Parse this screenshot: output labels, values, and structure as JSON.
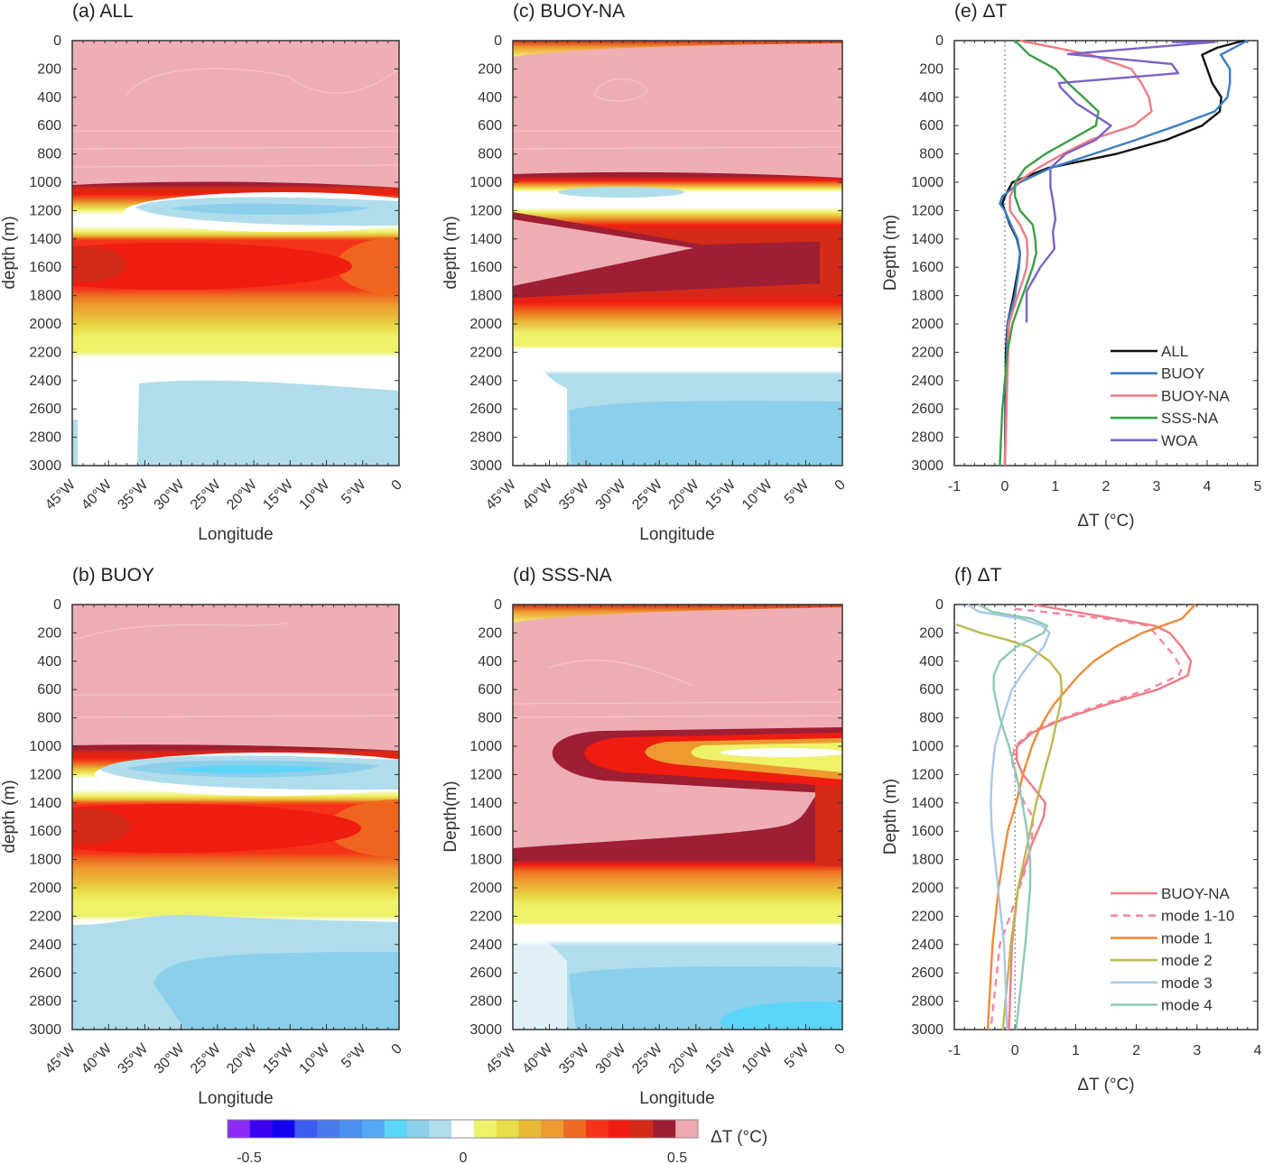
{
  "depth_ticks": [
    0,
    200,
    400,
    600,
    800,
    1000,
    1200,
    1400,
    1600,
    1800,
    2000,
    2200,
    2400,
    2600,
    2800,
    3000
  ],
  "lon_ticks": [
    "45°W",
    "40°W",
    "35°W",
    "30°W",
    "25°W",
    "20°W",
    "15°W",
    "10°W",
    "5°W",
    "0"
  ],
  "chart_data": [
    {
      "type": "heatmap",
      "title": "(a) ALL",
      "xlabel": "Longitude",
      "ylabel": "depth (m)",
      "xlim": [
        "45°W",
        "0"
      ],
      "ylim": [
        3000,
        0
      ]
    },
    {
      "type": "heatmap",
      "title": "(b) BUOY",
      "xlabel": "Longitude",
      "ylabel": "depth (m)",
      "xlim": [
        "45°W",
        "0"
      ],
      "ylim": [
        3000,
        0
      ]
    },
    {
      "type": "heatmap",
      "title": "(c) BUOY-NA",
      "xlabel": "Longitude",
      "ylabel": "depth (m)",
      "xlim": [
        "45°W",
        "0"
      ],
      "ylim": [
        3000,
        0
      ]
    },
    {
      "type": "heatmap",
      "title": "(d) SSS-NA",
      "xlabel": "Longitude",
      "ylabel": "Depth(m)",
      "xlim": [
        "45°W",
        "0"
      ],
      "ylim": [
        3000,
        0
      ]
    },
    {
      "type": "line",
      "title": "(e) ΔT",
      "xlabel": "ΔT (°C)",
      "ylabel": "Depth (m)",
      "xlim": [
        -1,
        5
      ],
      "ylim": [
        3000,
        0
      ],
      "xticks": [
        "-1",
        "0",
        "1",
        "2",
        "3",
        "4",
        "5"
      ],
      "legend": "bottom-right",
      "series": [
        {
          "name": "ALL",
          "color": "#111111",
          "points": [
            [
              4.73,
              0
            ],
            [
              4.2,
              50
            ],
            [
              3.9,
              100
            ],
            [
              3.95,
              150
            ],
            [
              4.0,
              200
            ],
            [
              4.1,
              300
            ],
            [
              4.28,
              400
            ],
            [
              4.25,
              500
            ],
            [
              3.9,
              600
            ],
            [
              3.2,
              700
            ],
            [
              2.2,
              800
            ],
            [
              0.85,
              900
            ],
            [
              0.15,
              1000
            ],
            [
              0,
              1100
            ],
            [
              -0.05,
              1150
            ],
            [
              0,
              1200
            ],
            [
              0.1,
              1300
            ],
            [
              0.24,
              1400
            ],
            [
              0.3,
              1500
            ],
            [
              0.27,
              1600
            ],
            [
              0.22,
              1700
            ],
            [
              0.17,
              1800
            ],
            [
              0.05,
              2000
            ],
            [
              0.02,
              2200
            ],
            [
              0,
              3000
            ]
          ]
        },
        {
          "name": "BUOY",
          "color": "#3C7DC4",
          "points": [
            [
              4.8,
              0
            ],
            [
              4.27,
              100
            ],
            [
              4.45,
              200
            ],
            [
              4.45,
              300
            ],
            [
              4.4,
              400
            ],
            [
              4.15,
              500
            ],
            [
              3.4,
              600
            ],
            [
              2.6,
              700
            ],
            [
              1.75,
              800
            ],
            [
              0.9,
              900
            ],
            [
              0.3,
              1000
            ],
            [
              -0.05,
              1100
            ],
            [
              -0.1,
              1150
            ],
            [
              0,
              1200
            ],
            [
              0.12,
              1300
            ],
            [
              0.25,
              1400
            ],
            [
              0.3,
              1500
            ],
            [
              0.28,
              1600
            ],
            [
              0.2,
              1800
            ],
            [
              0.05,
              2000
            ],
            [
              0,
              3000
            ]
          ]
        },
        {
          "name": "BUOY-NA",
          "color": "#F07C84",
          "points": [
            [
              0.3,
              0
            ],
            [
              1.7,
              100
            ],
            [
              2.5,
              200
            ],
            [
              2.7,
              300
            ],
            [
              2.85,
              400
            ],
            [
              2.9,
              500
            ],
            [
              2.55,
              600
            ],
            [
              1.7,
              700
            ],
            [
              1.15,
              800
            ],
            [
              0.65,
              900
            ],
            [
              0.25,
              1000
            ],
            [
              0.1,
              1100
            ],
            [
              0.1,
              1200
            ],
            [
              0.3,
              1300
            ],
            [
              0.43,
              1400
            ],
            [
              0.45,
              1500
            ],
            [
              0.43,
              1600
            ],
            [
              0.35,
              1700
            ],
            [
              0.25,
              1800
            ],
            [
              0.08,
              2000
            ],
            [
              0,
              3000
            ]
          ]
        },
        {
          "name": "SSS-NA",
          "color": "#3E9E48",
          "points": [
            [
              0.2,
              0
            ],
            [
              0.48,
              100
            ],
            [
              1.0,
              200
            ],
            [
              1.25,
              300
            ],
            [
              1.55,
              400
            ],
            [
              1.85,
              500
            ],
            [
              1.8,
              600
            ],
            [
              1.3,
              700
            ],
            [
              0.8,
              800
            ],
            [
              0.4,
              900
            ],
            [
              0.2,
              1000
            ],
            [
              0.2,
              1100
            ],
            [
              0.3,
              1200
            ],
            [
              0.55,
              1300
            ],
            [
              0.6,
              1400
            ],
            [
              0.62,
              1500
            ],
            [
              0.55,
              1600
            ],
            [
              0.35,
              1800
            ],
            [
              0.15,
              2000
            ],
            [
              0.05,
              2200
            ],
            [
              -0.05,
              2600
            ],
            [
              -0.1,
              3000
            ]
          ]
        },
        {
          "name": "WOA",
          "color": "#7B62C8",
          "points": [
            [
              3.3,
              10
            ],
            [
              4.15,
              10
            ],
            [
              1.25,
              95
            ],
            [
              3.3,
              165
            ],
            [
              3.43,
              230
            ],
            [
              1.07,
              300
            ],
            [
              1.1,
              330
            ],
            [
              1.4,
              440
            ],
            [
              2.1,
              600
            ],
            [
              1.8,
              700
            ],
            [
              1.2,
              800
            ],
            [
              0.9,
              900
            ],
            [
              0.9,
              1030
            ],
            [
              0.95,
              1130
            ],
            [
              1.0,
              1260
            ],
            [
              0.95,
              1350
            ],
            [
              0.98,
              1470
            ],
            [
              0.7,
              1600
            ],
            [
              0.43,
              1770
            ],
            [
              0.43,
              1990
            ]
          ]
        }
      ]
    },
    {
      "type": "line",
      "title": "(f) ΔT",
      "xlabel": "ΔT (°C)",
      "ylabel": "Depth (m)",
      "xlim": [
        -1,
        4
      ],
      "ylim": [
        3000,
        0
      ],
      "xticks": [
        "-1",
        "0",
        "1",
        "2",
        "3",
        "4"
      ],
      "legend": "bottom-right",
      "series": [
        {
          "name": "BUOY-NA",
          "color": "#EF7B84",
          "dashed": false,
          "points": [
            [
              0.3,
              0
            ],
            [
              1.65,
              100
            ],
            [
              2.3,
              150
            ],
            [
              2.55,
              200
            ],
            [
              2.75,
              300
            ],
            [
              2.9,
              400
            ],
            [
              2.85,
              500
            ],
            [
              2.35,
              600
            ],
            [
              1.55,
              700
            ],
            [
              0.85,
              800
            ],
            [
              0.3,
              900
            ],
            [
              0.03,
              1000
            ],
            [
              0.03,
              1100
            ],
            [
              0.13,
              1200
            ],
            [
              0.32,
              1300
            ],
            [
              0.5,
              1400
            ],
            [
              0.47,
              1500
            ],
            [
              0.37,
              1600
            ],
            [
              0.27,
              1700
            ],
            [
              0.2,
              1800
            ],
            [
              0.05,
              2000
            ],
            [
              -0.05,
              2400
            ],
            [
              -0.1,
              3000
            ]
          ]
        },
        {
          "name": "mode 1-10",
          "color": "#EF8AA0",
          "dashed": true,
          "points": [
            [
              0.0,
              30
            ],
            [
              1.5,
              100
            ],
            [
              2.2,
              150
            ],
            [
              2.3,
              200
            ],
            [
              2.6,
              350
            ],
            [
              2.75,
              450
            ],
            [
              2.7,
              500
            ],
            [
              2.2,
              600
            ],
            [
              1.45,
              700
            ],
            [
              0.8,
              800
            ],
            [
              0.25,
              900
            ],
            [
              0.0,
              1000
            ],
            [
              -0.05,
              1100
            ],
            [
              0.0,
              1200
            ],
            [
              0.15,
              1400
            ],
            [
              0.3,
              1500
            ],
            [
              0.27,
              1700
            ],
            [
              0.15,
              1900
            ],
            [
              0.0,
              2100
            ],
            [
              -0.25,
              2400
            ],
            [
              -0.35,
              2800
            ],
            [
              -0.4,
              3000
            ]
          ]
        },
        {
          "name": "mode 1",
          "color": "#F08A3A",
          "dashed": false,
          "points": [
            [
              2.97,
              0
            ],
            [
              2.75,
              100
            ],
            [
              2.1,
              200
            ],
            [
              1.65,
              300
            ],
            [
              1.3,
              400
            ],
            [
              1.05,
              500
            ],
            [
              0.85,
              600
            ],
            [
              0.65,
              700
            ],
            [
              0.5,
              800
            ],
            [
              0.38,
              900
            ],
            [
              0.28,
              1000
            ],
            [
              0.13,
              1200
            ],
            [
              0.02,
              1400
            ],
            [
              -0.12,
              1600
            ],
            [
              -0.2,
              1800
            ],
            [
              -0.27,
              2000
            ],
            [
              -0.37,
              2400
            ],
            [
              -0.45,
              3000
            ]
          ]
        },
        {
          "name": "mode 2",
          "color": "#BDB850",
          "dashed": false,
          "points": [
            [
              -0.97,
              140
            ],
            [
              -0.57,
              200
            ],
            [
              -0.12,
              250
            ],
            [
              0.23,
              300
            ],
            [
              0.57,
              400
            ],
            [
              0.75,
              500
            ],
            [
              0.77,
              600
            ],
            [
              0.75,
              700
            ],
            [
              0.7,
              800
            ],
            [
              0.6,
              1000
            ],
            [
              0.47,
              1200
            ],
            [
              0.35,
              1400
            ],
            [
              0.25,
              1600
            ],
            [
              0.15,
              1800
            ],
            [
              0.05,
              2000
            ],
            [
              -0.07,
              2400
            ],
            [
              -0.2,
              3000
            ]
          ]
        },
        {
          "name": "mode 3",
          "color": "#A9C8EA",
          "dashed": false,
          "points": [
            [
              -0.78,
              0
            ],
            [
              -0.6,
              50
            ],
            [
              0.1,
              100
            ],
            [
              0.45,
              150
            ],
            [
              0.57,
              200
            ],
            [
              0.47,
              300
            ],
            [
              0.27,
              400
            ],
            [
              0.1,
              500
            ],
            [
              -0.05,
              600
            ],
            [
              -0.2,
              800
            ],
            [
              -0.33,
              1000
            ],
            [
              -0.38,
              1200
            ],
            [
              -0.4,
              1400
            ],
            [
              -0.38,
              1600
            ],
            [
              -0.33,
              1800
            ],
            [
              -0.28,
              2000
            ],
            [
              -0.18,
              2400
            ],
            [
              -0.13,
              3000
            ]
          ]
        },
        {
          "name": "mode 4",
          "color": "#8FC9B6",
          "dashed": false,
          "points": [
            [
              -0.6,
              0
            ],
            [
              -0.38,
              50
            ],
            [
              0.27,
              100
            ],
            [
              0.53,
              150
            ],
            [
              0.47,
              200
            ],
            [
              0.02,
              300
            ],
            [
              -0.25,
              400
            ],
            [
              -0.35,
              500
            ],
            [
              -0.35,
              600
            ],
            [
              -0.25,
              800
            ],
            [
              -0.1,
              1000
            ],
            [
              0.02,
              1200
            ],
            [
              0.12,
              1400
            ],
            [
              0.2,
              1600
            ],
            [
              0.25,
              1800
            ],
            [
              0.25,
              2000
            ],
            [
              0.17,
              2400
            ],
            [
              0.02,
              3000
            ]
          ]
        }
      ]
    }
  ],
  "colorbar": {
    "label": "ΔT (°C)",
    "range": [
      -0.5,
      0.5
    ],
    "ticks": [
      "-0.5",
      "0",
      "0.5"
    ],
    "colors": [
      "#8B2BF5",
      "#3A00F0",
      "#1400EE",
      "#3E5BF0",
      "#4A7AEE",
      "#4A90F0",
      "#52A8F5",
      "#5CD5F8",
      "#8CCFEA",
      "#B0DDEC",
      "#FFFFFF",
      "#EEF26A",
      "#E8DC48",
      "#E9B838",
      "#EE9A30",
      "#EE6A20",
      "#F5321A",
      "#F01C10",
      "#D42A18",
      "#9E1E34",
      "#EFA9AE"
    ]
  }
}
